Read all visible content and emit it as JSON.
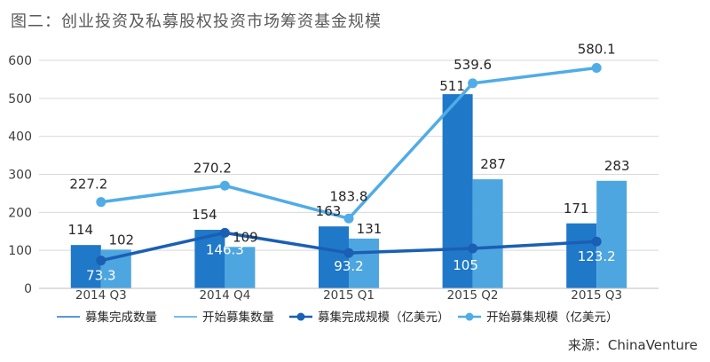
{
  "title": "图二：创业投资及私募股权投资市场筹资基金规模",
  "source": "来源：ChinaVenture",
  "colors": {
    "bar_completed": "#1f78c8",
    "bar_started": "#4ea6e0",
    "line_completed": "#1a5fb4",
    "line_started": "#50ace6",
    "grid": "#d9d9d9",
    "axis_text": "#404040",
    "label_text": "#262626",
    "label_on_bar": "#ffffff"
  },
  "chart_data": {
    "type": "bar",
    "categories": [
      "2014 Q3",
      "2014 Q4",
      "2015 Q1",
      "2015 Q2",
      "2015 Q3"
    ],
    "ylim": [
      0,
      600
    ],
    "yticks": [
      0,
      100,
      200,
      300,
      400,
      500,
      600
    ],
    "grid": true,
    "legend_position": "bottom",
    "series": [
      {
        "name": "募集完成数量",
        "type": "bar",
        "values": [
          114,
          154,
          163,
          511,
          171
        ]
      },
      {
        "name": "开始募集数量",
        "type": "bar",
        "values": [
          102,
          109,
          131,
          287,
          283
        ]
      },
      {
        "name": "募集完成规模（亿美元）",
        "type": "line",
        "values": [
          73.3,
          146.3,
          93.2,
          105,
          123.2
        ]
      },
      {
        "name": "开始募集规模（亿美元）",
        "type": "line",
        "values": [
          227.2,
          270.2,
          183.8,
          539.6,
          580.1
        ]
      }
    ]
  }
}
